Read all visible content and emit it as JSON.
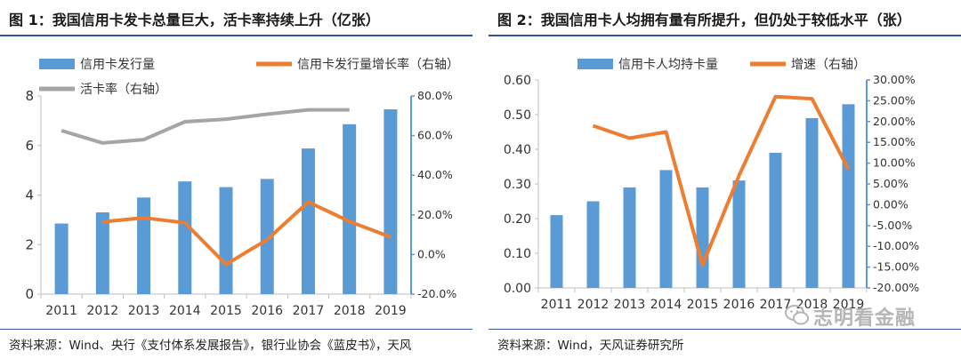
{
  "figure1": {
    "title": "图 1：我国信用卡发卡总量巨大，活卡率持续上升（亿张）",
    "source": "资料来源：Wind、央行《支付体系发展报告》，银行业协会《蓝皮书》，天风"
  },
  "figure2": {
    "title": "图 2：我国信用卡人均拥有量有所提升，但仍处于较低水平（张）",
    "source": "资料来源：Wind，天风证券研究所"
  },
  "watermark": {
    "text": "志明看金融",
    "icon": "wechat-bubble-icon"
  },
  "colors": {
    "bar": "#5b9bd5",
    "line_orange": "#ed7d31",
    "line_gray": "#a5a5a5",
    "accent": "#2f5597"
  },
  "chart_data": [
    {
      "type": "bar",
      "categories": [
        "2011",
        "2012",
        "2013",
        "2014",
        "2015",
        "2016",
        "2017",
        "2018",
        "2019"
      ],
      "series": [
        {
          "name": "信用卡发行量",
          "type": "bar",
          "axis": "left",
          "values": [
            2.85,
            3.3,
            3.9,
            4.55,
            4.32,
            4.65,
            5.88,
            6.86,
            7.46
          ]
        },
        {
          "name": "信用卡发行量增长率（右轴）",
          "type": "line",
          "axis": "right",
          "values": [
            null,
            16.5,
            18.5,
            16.0,
            -5.0,
            7.5,
            26.5,
            16.7,
            8.8
          ]
        },
        {
          "name": "活卡率（右轴）",
          "type": "line",
          "axis": "right",
          "values": [
            62.5,
            56.3,
            58.0,
            67.0,
            68.3,
            70.8,
            73.0,
            73.0,
            null
          ]
        }
      ],
      "ylim": [
        0,
        8
      ],
      "yticks": [
        "0",
        "2",
        "4",
        "6",
        "8"
      ],
      "ylim_right": [
        -20,
        80
      ],
      "yticks_right": [
        "-20.0%",
        "0.0%",
        "20.0%",
        "40.0%",
        "60.0%",
        "80.0%"
      ],
      "legend": [
        "信用卡发行量",
        "信用卡发行量增长率（右轴）",
        "活卡率（右轴）"
      ],
      "grid": false
    },
    {
      "type": "bar",
      "categories": [
        "2011",
        "2012",
        "2013",
        "2014",
        "2015",
        "2016",
        "2017",
        "2018",
        "2019"
      ],
      "series": [
        {
          "name": "信用卡人均持卡量",
          "type": "bar",
          "axis": "left",
          "values": [
            0.21,
            0.25,
            0.29,
            0.34,
            0.29,
            0.31,
            0.39,
            0.49,
            0.53
          ]
        },
        {
          "name": "增速（右轴）",
          "type": "line",
          "axis": "right",
          "values": [
            null,
            19.0,
            16.0,
            17.5,
            -14.5,
            7.0,
            26.0,
            25.5,
            8.5
          ]
        }
      ],
      "ylim": [
        0,
        0.6
      ],
      "yticks": [
        "0.00",
        "0.10",
        "0.20",
        "0.30",
        "0.40",
        "0.50",
        "0.60"
      ],
      "ylim_right": [
        -20,
        30
      ],
      "yticks_right": [
        "-20.00%",
        "-15.00%",
        "-10.00%",
        "-5.00%",
        "0.00%",
        "5.00%",
        "10.00%",
        "15.00%",
        "20.00%",
        "25.00%",
        "30.00%"
      ],
      "legend": [
        "信用卡人均持卡量",
        "增速（右轴）"
      ],
      "grid": false
    }
  ]
}
